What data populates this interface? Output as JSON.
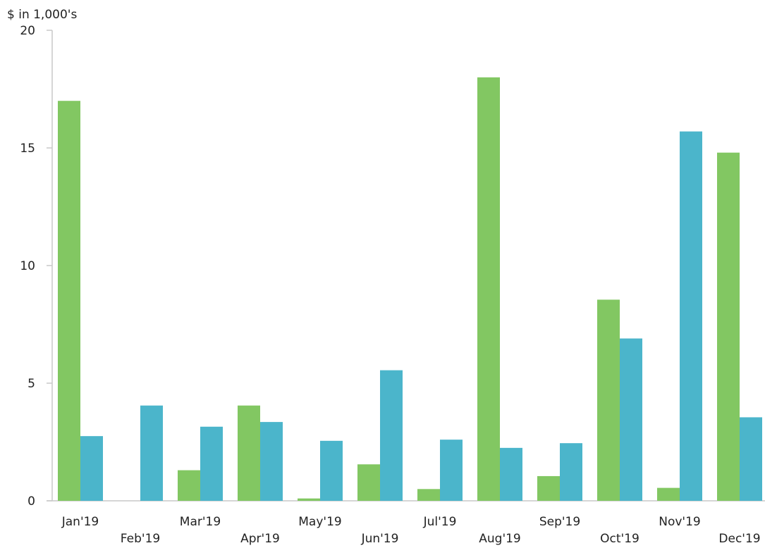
{
  "chart_data": {
    "type": "bar",
    "ylabel": "$ in 1,000's",
    "xlabel": "",
    "ylim": [
      0,
      20
    ],
    "yticks": [
      0,
      5,
      10,
      15,
      20
    ],
    "grid": false,
    "legend": "none",
    "categories": [
      "Jan'19",
      "Feb'19",
      "Mar'19",
      "Apr'19",
      "May'19",
      "Jun'19",
      "Jul'19",
      "Aug'19",
      "Sep'19",
      "Oct'19",
      "Nov'19",
      "Dec'19"
    ],
    "series": [
      {
        "color": "#82c762",
        "values": [
          17.0,
          0,
          1.3,
          4.05,
          0.1,
          1.55,
          0.5,
          18.0,
          1.05,
          8.55,
          0.55,
          14.8
        ]
      },
      {
        "color": "#4bb5cb",
        "values": [
          2.75,
          4.05,
          3.15,
          3.35,
          2.55,
          5.55,
          2.6,
          2.25,
          2.45,
          6.9,
          15.7,
          3.55
        ]
      }
    ]
  }
}
